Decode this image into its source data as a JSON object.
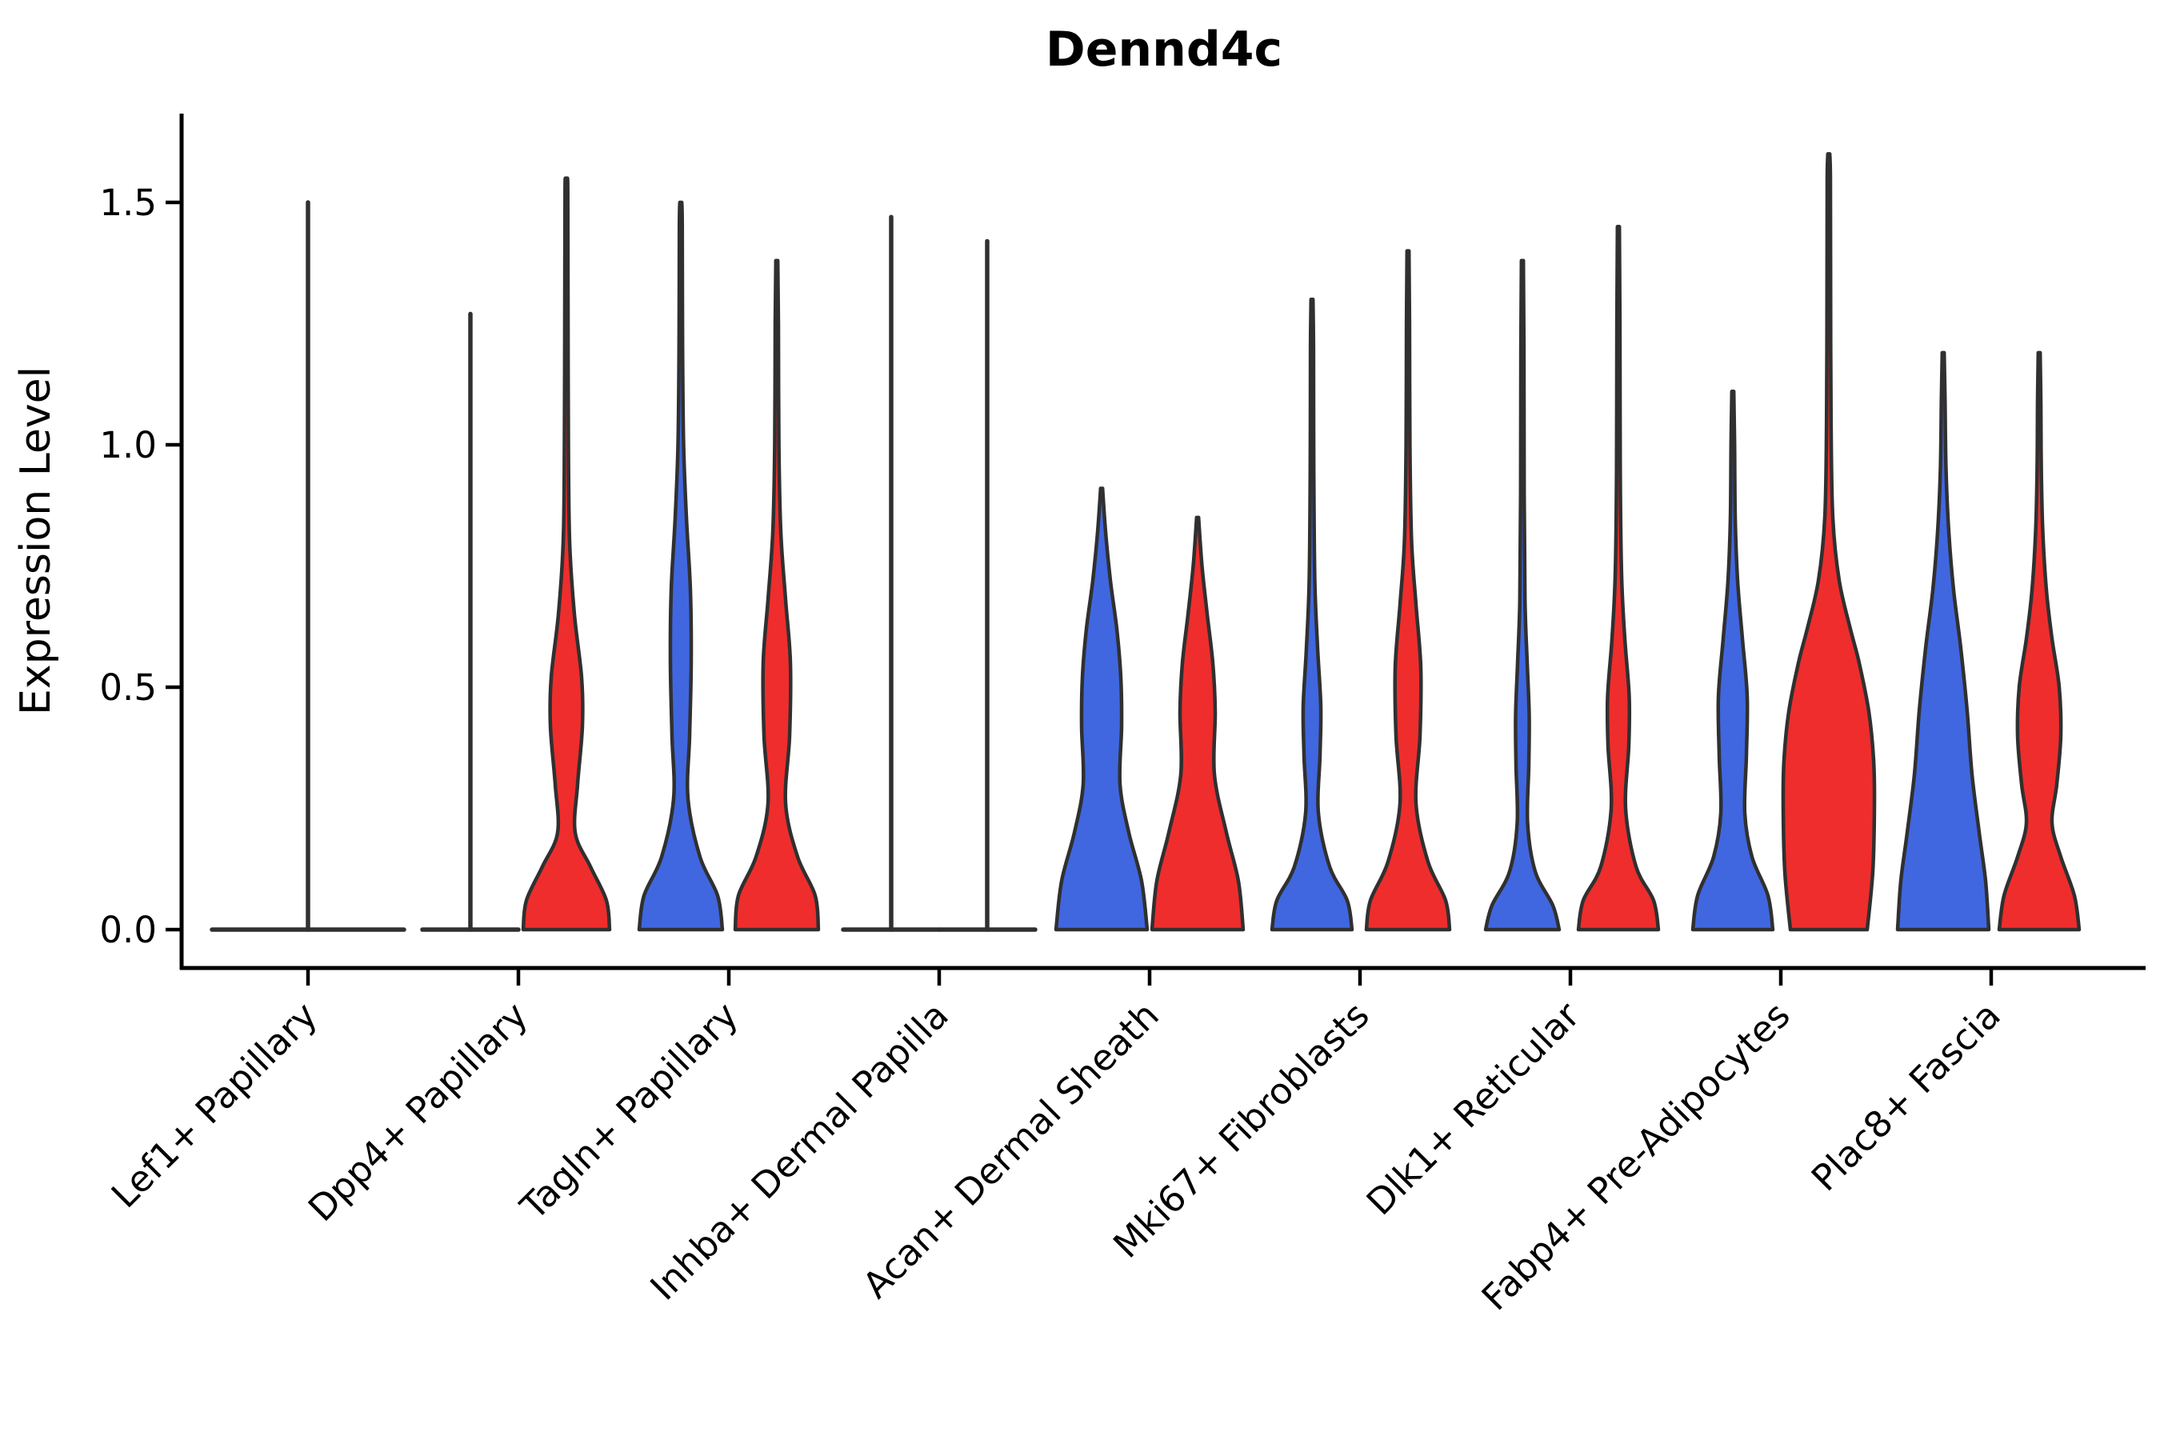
{
  "chart_data": {
    "type": "violin",
    "title": "Dennd4c",
    "ylabel": "Expression Level",
    "xlabel": "",
    "legend": "none",
    "grid": false,
    "ylim": [
      -0.08,
      1.68
    ],
    "yticks": [
      {
        "label": "0.0",
        "value": 0.0
      },
      {
        "label": "0.5",
        "value": 0.5
      },
      {
        "label": "1.0",
        "value": 1.0
      },
      {
        "label": "1.5",
        "value": 1.5
      }
    ],
    "categories": [
      "Lef1+ Papillary",
      "Dpp4+ Papillary",
      "Tagln+ Papillary",
      "Inhba+ Dermal Papilla",
      "Acan+ Dermal Sheath",
      "Mki67+ Fibroblasts",
      "Dlk1+ Reticular",
      "Fabp4+ Pre-Adipocytes",
      "Plac8+ Fascia"
    ],
    "series": [
      {
        "name": "blue",
        "color": "#4067E0"
      },
      {
        "name": "red",
        "color": "#EF2D2D"
      }
    ],
    "outline_color": "#303030",
    "groups": [
      {
        "category": "Lef1+ Papillary",
        "violins": [
          {
            "series": "single",
            "kind": "flat",
            "span": "full",
            "max_expression": 1.5
          }
        ]
      },
      {
        "category": "Dpp4+ Papillary",
        "violins": [
          {
            "series": "blue",
            "kind": "flat",
            "span": "left",
            "max_expression": 1.27
          },
          {
            "series": "red",
            "kind": "violin",
            "max_expression": 1.55,
            "profile": [
              [
                0,
                54
              ],
              [
                0.06,
                50
              ],
              [
                0.13,
                30
              ],
              [
                0.2,
                11
              ],
              [
                0.3,
                14
              ],
              [
                0.42,
                20
              ],
              [
                0.52,
                19
              ],
              [
                0.65,
                10
              ],
              [
                0.8,
                4
              ],
              [
                1.0,
                2.5
              ],
              [
                1.3,
                2
              ],
              [
                1.52,
                1.7
              ]
            ]
          }
        ]
      },
      {
        "category": "Tagln+ Papillary",
        "violins": [
          {
            "series": "blue",
            "kind": "violin",
            "max_expression": 1.5,
            "profile": [
              [
                0,
                52
              ],
              [
                0.07,
                46
              ],
              [
                0.15,
                24
              ],
              [
                0.27,
                9
              ],
              [
                0.4,
                11
              ],
              [
                0.55,
                13
              ],
              [
                0.7,
                12
              ],
              [
                0.85,
                7
              ],
              [
                1.0,
                3.5
              ],
              [
                1.2,
                2.2
              ],
              [
                1.45,
                1.8
              ]
            ]
          },
          {
            "series": "red",
            "kind": "violin",
            "max_expression": 1.38,
            "profile": [
              [
                0,
                52
              ],
              [
                0.07,
                48
              ],
              [
                0.15,
                26
              ],
              [
                0.26,
                11
              ],
              [
                0.4,
                16
              ],
              [
                0.55,
                17
              ],
              [
                0.68,
                11
              ],
              [
                0.82,
                5
              ],
              [
                1.0,
                2.6
              ],
              [
                1.25,
                2
              ]
            ]
          }
        ]
      },
      {
        "category": "Inhba+ Dermal Papilla",
        "violins": [
          {
            "series": "blue",
            "kind": "flat",
            "span": "left",
            "max_expression": 1.47
          },
          {
            "series": "red",
            "kind": "flat",
            "span": "right",
            "max_expression": 1.42
          }
        ]
      },
      {
        "category": "Acan+ Dermal Sheath",
        "violins": [
          {
            "series": "blue",
            "kind": "violin",
            "max_expression": 0.91,
            "profile": [
              [
                0,
                57
              ],
              [
                0.1,
                50
              ],
              [
                0.2,
                34
              ],
              [
                0.3,
                23
              ],
              [
                0.42,
                25
              ],
              [
                0.52,
                24
              ],
              [
                0.62,
                19
              ],
              [
                0.72,
                11
              ],
              [
                0.82,
                5
              ]
            ]
          },
          {
            "series": "red",
            "kind": "violin",
            "max_expression": 0.85,
            "profile": [
              [
                0,
                57
              ],
              [
                0.1,
                51
              ],
              [
                0.2,
                36
              ],
              [
                0.32,
                21
              ],
              [
                0.45,
                22
              ],
              [
                0.55,
                19
              ],
              [
                0.65,
                12
              ],
              [
                0.75,
                5.5
              ]
            ]
          }
        ]
      },
      {
        "category": "Mki67+ Fibroblasts",
        "violins": [
          {
            "series": "blue",
            "kind": "violin",
            "max_expression": 1.3,
            "profile": [
              [
                0,
                50
              ],
              [
                0.06,
                44
              ],
              [
                0.13,
                22
              ],
              [
                0.24,
                8
              ],
              [
                0.36,
                10
              ],
              [
                0.46,
                11
              ],
              [
                0.58,
                7
              ],
              [
                0.72,
                3.5
              ],
              [
                0.95,
                2.2
              ],
              [
                1.2,
                1.9
              ]
            ]
          },
          {
            "series": "red",
            "kind": "violin",
            "max_expression": 1.4,
            "profile": [
              [
                0,
                52
              ],
              [
                0.06,
                47
              ],
              [
                0.14,
                25
              ],
              [
                0.26,
                10
              ],
              [
                0.4,
                15
              ],
              [
                0.54,
                16
              ],
              [
                0.67,
                10
              ],
              [
                0.8,
                4.5
              ],
              [
                1.0,
                2.4
              ],
              [
                1.25,
                1.9
              ]
            ]
          }
        ]
      },
      {
        "category": "Dlk1+ Reticular",
        "violins": [
          {
            "series": "blue",
            "kind": "violin",
            "max_expression": 1.38,
            "profile": [
              [
                0,
                46
              ],
              [
                0.05,
                38
              ],
              [
                0.12,
                16
              ],
              [
                0.22,
                6.5
              ],
              [
                0.34,
                8
              ],
              [
                0.44,
                8.5
              ],
              [
                0.55,
                6
              ],
              [
                0.68,
                3.2
              ],
              [
                0.9,
                2.2
              ],
              [
                1.2,
                1.9
              ]
            ]
          },
          {
            "series": "red",
            "kind": "violin",
            "max_expression": 1.45,
            "profile": [
              [
                0,
                50
              ],
              [
                0.06,
                44
              ],
              [
                0.13,
                22
              ],
              [
                0.25,
                9
              ],
              [
                0.38,
                13
              ],
              [
                0.48,
                13.5
              ],
              [
                0.6,
                8
              ],
              [
                0.73,
                4
              ],
              [
                0.95,
                2.3
              ],
              [
                1.25,
                1.9
              ]
            ]
          }
        ]
      },
      {
        "category": "Fabp4+ Pre-Adipocytes",
        "violins": [
          {
            "series": "blue",
            "kind": "violin",
            "max_expression": 1.11,
            "profile": [
              [
                0,
                50
              ],
              [
                0.07,
                44
              ],
              [
                0.15,
                24
              ],
              [
                0.24,
                15
              ],
              [
                0.36,
                17
              ],
              [
                0.48,
                18
              ],
              [
                0.6,
                12
              ],
              [
                0.72,
                6
              ],
              [
                0.85,
                3
              ],
              [
                1.0,
                2.2
              ]
            ]
          },
          {
            "series": "red",
            "kind": "violin",
            "max_expression": 1.6,
            "profile": [
              [
                0,
                48
              ],
              [
                0.12,
                55
              ],
              [
                0.25,
                57
              ],
              [
                0.35,
                56
              ],
              [
                0.45,
                50
              ],
              [
                0.55,
                38
              ],
              [
                0.62,
                27
              ],
              [
                0.72,
                13
              ],
              [
                0.85,
                5
              ],
              [
                1.05,
                2.8
              ],
              [
                1.35,
                2.2
              ],
              [
                1.55,
                2
              ]
            ]
          }
        ]
      },
      {
        "category": "Plac8+ Fascia",
        "violins": [
          {
            "series": "blue",
            "kind": "violin",
            "max_expression": 1.19,
            "profile": [
              [
                0,
                57
              ],
              [
                0.1,
                53
              ],
              [
                0.2,
                45
              ],
              [
                0.32,
                36
              ],
              [
                0.45,
                30
              ],
              [
                0.58,
                22
              ],
              [
                0.7,
                13
              ],
              [
                0.82,
                7
              ],
              [
                0.95,
                3.5
              ],
              [
                1.1,
                2.2
              ]
            ]
          },
          {
            "series": "red",
            "kind": "violin",
            "max_expression": 1.19,
            "profile": [
              [
                0,
                50
              ],
              [
                0.07,
                44
              ],
              [
                0.15,
                27
              ],
              [
                0.22,
                16
              ],
              [
                0.3,
                22
              ],
              [
                0.4,
                27
              ],
              [
                0.5,
                25
              ],
              [
                0.6,
                16
              ],
              [
                0.7,
                9
              ],
              [
                0.82,
                4.5
              ],
              [
                0.95,
                2.6
              ],
              [
                1.08,
                2.1
              ]
            ]
          }
        ]
      }
    ]
  }
}
